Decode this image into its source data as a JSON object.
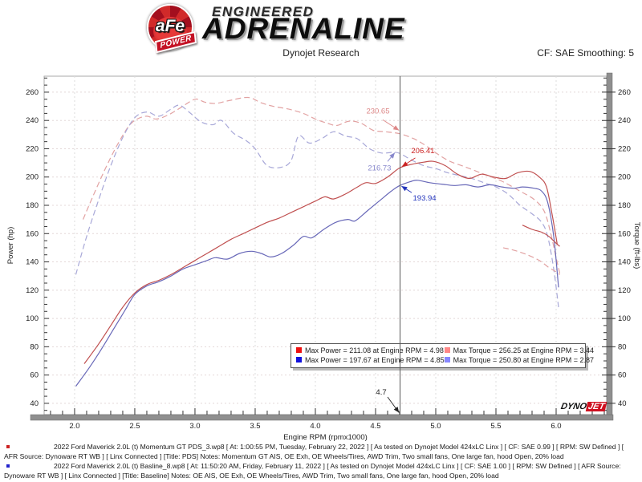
{
  "header": {
    "brand": {
      "logo_circle_text": "aFe",
      "logo_banner_text": "POWER",
      "line1": "ENGINEERED",
      "line2": "ADRENALINE"
    },
    "title": "Dynojet Research",
    "smoothing": "CF: SAE Smoothing: 5"
  },
  "chart_data": {
    "type": "line",
    "xlabel": "Engine RPM (rpmx1000)",
    "ylabel_left": "Power (hp)",
    "ylabel_right": "Torque (ft-lbs)",
    "xlim": [
      1.747,
      6.42
    ],
    "ylim": [
      32.0,
      271.3
    ],
    "x_ticks": [
      2.0,
      2.5,
      3.0,
      3.5,
      4.0,
      4.5,
      5.0,
      5.5,
      6.0
    ],
    "y_ticks": [
      40,
      60,
      80,
      100,
      120,
      140,
      160,
      180,
      200,
      220,
      240,
      260
    ],
    "x_minor_step": 0.1,
    "y_minor_step": 5,
    "grid": true,
    "cursor_x": 4.7,
    "legend_position": "bottom-center-inside",
    "series": [
      {
        "id": "pds_torque",
        "name": "Momentum GT PDS torque",
        "axis": "right",
        "color": "#e2a2a2",
        "dash": "dashed",
        "points": [
          [
            2.07,
            170
          ],
          [
            2.15,
            186
          ],
          [
            2.25,
            205
          ],
          [
            2.35,
            222
          ],
          [
            2.45,
            236
          ],
          [
            2.52,
            241
          ],
          [
            2.6,
            243
          ],
          [
            2.68,
            241
          ],
          [
            2.78,
            244
          ],
          [
            2.88,
            249
          ],
          [
            3.0,
            255
          ],
          [
            3.08,
            253
          ],
          [
            3.17,
            252
          ],
          [
            3.28,
            254
          ],
          [
            3.44,
            256.25
          ],
          [
            3.55,
            252.5
          ],
          [
            3.65,
            250
          ],
          [
            3.78,
            248
          ],
          [
            3.9,
            245
          ],
          [
            4.0,
            241
          ],
          [
            4.1,
            238
          ],
          [
            4.18,
            236.5
          ],
          [
            4.28,
            239.5
          ],
          [
            4.38,
            238
          ],
          [
            4.48,
            233
          ],
          [
            4.58,
            232
          ],
          [
            4.7,
            230.65
          ],
          [
            4.82,
            227
          ],
          [
            4.92,
            222
          ],
          [
            5.02,
            216
          ],
          [
            5.12,
            211
          ],
          [
            5.25,
            207
          ],
          [
            5.4,
            202
          ],
          [
            5.55,
            197
          ],
          [
            5.7,
            190
          ],
          [
            5.82,
            184
          ],
          [
            5.9,
            176
          ],
          [
            5.95,
            162
          ],
          [
            6.0,
            143
          ],
          [
            6.03,
            132
          ]
        ]
      },
      {
        "id": "base_torque",
        "name": "Baseline torque",
        "axis": "right",
        "color": "#a8a8d8",
        "dash": "dashed",
        "points": [
          [
            2.01,
            131
          ],
          [
            2.1,
            158
          ],
          [
            2.2,
            184
          ],
          [
            2.3,
            208
          ],
          [
            2.4,
            228
          ],
          [
            2.5,
            242
          ],
          [
            2.6,
            246
          ],
          [
            2.7,
            243
          ],
          [
            2.8,
            248
          ],
          [
            2.87,
            250.8
          ],
          [
            2.95,
            246
          ],
          [
            3.05,
            239
          ],
          [
            3.15,
            237
          ],
          [
            3.22,
            240
          ],
          [
            3.32,
            231
          ],
          [
            3.42,
            226
          ],
          [
            3.5,
            220
          ],
          [
            3.6,
            208
          ],
          [
            3.72,
            207
          ],
          [
            3.8,
            212
          ],
          [
            3.86,
            229
          ],
          [
            3.95,
            224
          ],
          [
            4.05,
            227
          ],
          [
            4.15,
            232
          ],
          [
            4.25,
            229
          ],
          [
            4.35,
            227
          ],
          [
            4.45,
            220
          ],
          [
            4.55,
            217
          ],
          [
            4.65,
            217.5
          ],
          [
            4.7,
            216.73
          ],
          [
            4.8,
            212
          ],
          [
            4.9,
            208
          ],
          [
            5.0,
            206
          ],
          [
            5.1,
            203
          ],
          [
            5.2,
            201
          ],
          [
            5.3,
            199
          ],
          [
            5.4,
            196
          ],
          [
            5.5,
            193
          ],
          [
            5.6,
            188
          ],
          [
            5.7,
            180
          ],
          [
            5.8,
            174
          ],
          [
            5.88,
            168
          ],
          [
            5.93,
            158
          ],
          [
            5.98,
            135
          ],
          [
            6.02,
            108
          ]
        ]
      },
      {
        "id": "pds_power",
        "name": "Momentum GT PDS power",
        "axis": "left",
        "color": "#c05050",
        "dash": "solid",
        "points": [
          [
            2.08,
            68
          ],
          [
            2.2,
            82
          ],
          [
            2.3,
            95
          ],
          [
            2.4,
            108
          ],
          [
            2.5,
            118
          ],
          [
            2.6,
            124
          ],
          [
            2.7,
            127
          ],
          [
            2.8,
            131
          ],
          [
            2.9,
            136
          ],
          [
            3.0,
            141
          ],
          [
            3.1,
            146
          ],
          [
            3.2,
            151
          ],
          [
            3.3,
            156
          ],
          [
            3.4,
            160
          ],
          [
            3.5,
            164
          ],
          [
            3.6,
            168
          ],
          [
            3.7,
            171
          ],
          [
            3.8,
            175
          ],
          [
            3.9,
            179
          ],
          [
            4.0,
            183
          ],
          [
            4.08,
            186
          ],
          [
            4.15,
            184.5
          ],
          [
            4.25,
            188
          ],
          [
            4.35,
            193
          ],
          [
            4.42,
            196
          ],
          [
            4.5,
            195.5
          ],
          [
            4.6,
            200
          ],
          [
            4.7,
            206.41
          ],
          [
            4.8,
            209
          ],
          [
            4.9,
            210.5
          ],
          [
            4.98,
            211.08
          ],
          [
            5.08,
            208
          ],
          [
            5.18,
            202
          ],
          [
            5.28,
            199
          ],
          [
            5.38,
            202
          ],
          [
            5.48,
            200
          ],
          [
            5.58,
            199
          ],
          [
            5.68,
            203
          ],
          [
            5.78,
            204
          ],
          [
            5.86,
            200
          ],
          [
            5.92,
            193
          ],
          [
            5.97,
            172
          ],
          [
            6.01,
            152
          ]
        ]
      },
      {
        "id": "base_power",
        "name": "Baseline power",
        "axis": "left",
        "color": "#6868b8",
        "dash": "solid",
        "points": [
          [
            2.01,
            52
          ],
          [
            2.12,
            65
          ],
          [
            2.22,
            78
          ],
          [
            2.32,
            92
          ],
          [
            2.42,
            106
          ],
          [
            2.5,
            117
          ],
          [
            2.6,
            123
          ],
          [
            2.7,
            126
          ],
          [
            2.8,
            130
          ],
          [
            2.9,
            135
          ],
          [
            3.0,
            138
          ],
          [
            3.1,
            141
          ],
          [
            3.17,
            143
          ],
          [
            3.27,
            142
          ],
          [
            3.37,
            146
          ],
          [
            3.47,
            147.5
          ],
          [
            3.55,
            146
          ],
          [
            3.63,
            143.5
          ],
          [
            3.72,
            146
          ],
          [
            3.82,
            152
          ],
          [
            3.9,
            158
          ],
          [
            3.97,
            157
          ],
          [
            4.07,
            163
          ],
          [
            4.17,
            168
          ],
          [
            4.27,
            170
          ],
          [
            4.33,
            169
          ],
          [
            4.43,
            176
          ],
          [
            4.53,
            183
          ],
          [
            4.63,
            190
          ],
          [
            4.7,
            193.94
          ],
          [
            4.8,
            197
          ],
          [
            4.85,
            197.67
          ],
          [
            4.95,
            196
          ],
          [
            5.05,
            195
          ],
          [
            5.15,
            194
          ],
          [
            5.25,
            194.5
          ],
          [
            5.35,
            193
          ],
          [
            5.45,
            194.5
          ],
          [
            5.55,
            193
          ],
          [
            5.65,
            192
          ],
          [
            5.72,
            193
          ],
          [
            5.82,
            192
          ],
          [
            5.88,
            190
          ],
          [
            5.93,
            182
          ],
          [
            5.98,
            158
          ],
          [
            6.02,
            122
          ]
        ]
      },
      {
        "id": "pds_power_tail",
        "name": "PDS run tail",
        "axis": "left",
        "color": "#c05050",
        "dash": "solid",
        "points": [
          [
            5.72,
            166
          ],
          [
            5.8,
            163
          ],
          [
            5.88,
            161
          ],
          [
            5.94,
            158
          ],
          [
            5.99,
            154
          ],
          [
            6.03,
            151
          ]
        ]
      },
      {
        "id": "pds_torque_tail",
        "name": "PDS torque tail",
        "axis": "right",
        "color": "#e2a2a2",
        "dash": "dashed",
        "points": [
          [
            5.56,
            150
          ],
          [
            5.66,
            148
          ],
          [
            5.76,
            145
          ],
          [
            5.86,
            141
          ],
          [
            5.94,
            136
          ],
          [
            6.0,
            133
          ],
          [
            6.03,
            131
          ]
        ]
      }
    ],
    "annotations": [
      {
        "text": "230.65",
        "color": "#dd8888",
        "lx": 4.52,
        "ly": 246.5,
        "x1": 4.56,
        "y1": 240.5,
        "x2": 4.695,
        "y2": 233.0
      },
      {
        "text": "206.41",
        "color": "#cc2222",
        "lx": 4.893,
        "ly": 218.6,
        "x1": 4.83,
        "y1": 213.5,
        "x2": 4.72,
        "y2": 207.5
      },
      {
        "text": "216.73",
        "color": "#8888cc",
        "lx": 4.533,
        "ly": 206.5,
        "x1": 4.6,
        "y1": 211.0,
        "x2": 4.66,
        "y2": 217.2
      },
      {
        "text": "193.94",
        "color": "#2233bb",
        "lx": 4.907,
        "ly": 185.0,
        "x1": 4.8,
        "y1": 189.0,
        "x2": 4.715,
        "y2": 193.6
      },
      {
        "text": "4.7",
        "color": "#222222",
        "lx": 4.547,
        "ly": 47.9,
        "x1": 4.6,
        "y1": 44.5,
        "x2": 4.695,
        "y2": 33.4
      }
    ],
    "legend": {
      "items": [
        {
          "color": "#ee1111",
          "label": "Max Power = 211.08 at Engine RPM = 4.98"
        },
        {
          "color": "#ff8888",
          "label": "Max Torque = 256.25 at Engine RPM = 3.44"
        },
        {
          "color": "#1111dd",
          "label": "Max Power = 197.67 at Engine RPM = 4.85"
        },
        {
          "color": "#8888ff",
          "label": "Max Torque = 250.80 at Engine RPM = 2.87"
        }
      ]
    }
  },
  "watermark": {
    "dyno": "DYNO",
    "jet": "JET"
  },
  "footer": {
    "runs": [
      {
        "color": "#cc2222",
        "text": "2022 Ford Maverick 2.0L (t) Momentum GT PDS_3.wp8 [ At: 1:00:55 PM, Tuesday, February 22, 2022 ] [ As tested on Dynojet Model 424xLC Linx ] [ CF: SAE 0.99 ] [ RPM: SW Defined ] [ AFR Source: Dynoware RT WB ] [ Linx Connected ] [Title: PDS]  Notes: Momentum GT AIS, OE Exh, OE Wheels/Tires, AWD Trim, Two small fans, One large fan, hood Open, 20% load"
      },
      {
        "color": "#2222cc",
        "text": "2022 Ford Maverick 2.0L (t) Basline_8.wp8 [ At: 11:50:20 AM, Friday, February 11, 2022 ] [ As tested on Dynojet Model 424xLC Linx ] [ CF: SAE 1.00 ] [ RPM: SW Defined ] [ AFR Source: Dynoware RT WB ] [ Linx Connected ] [Title: Baseline]  Notes: OE AIS, OE Exh, OE Wheels/Tires, AWD Trim, Two small fans, One large fan, hood Open, 20% load"
      }
    ]
  }
}
